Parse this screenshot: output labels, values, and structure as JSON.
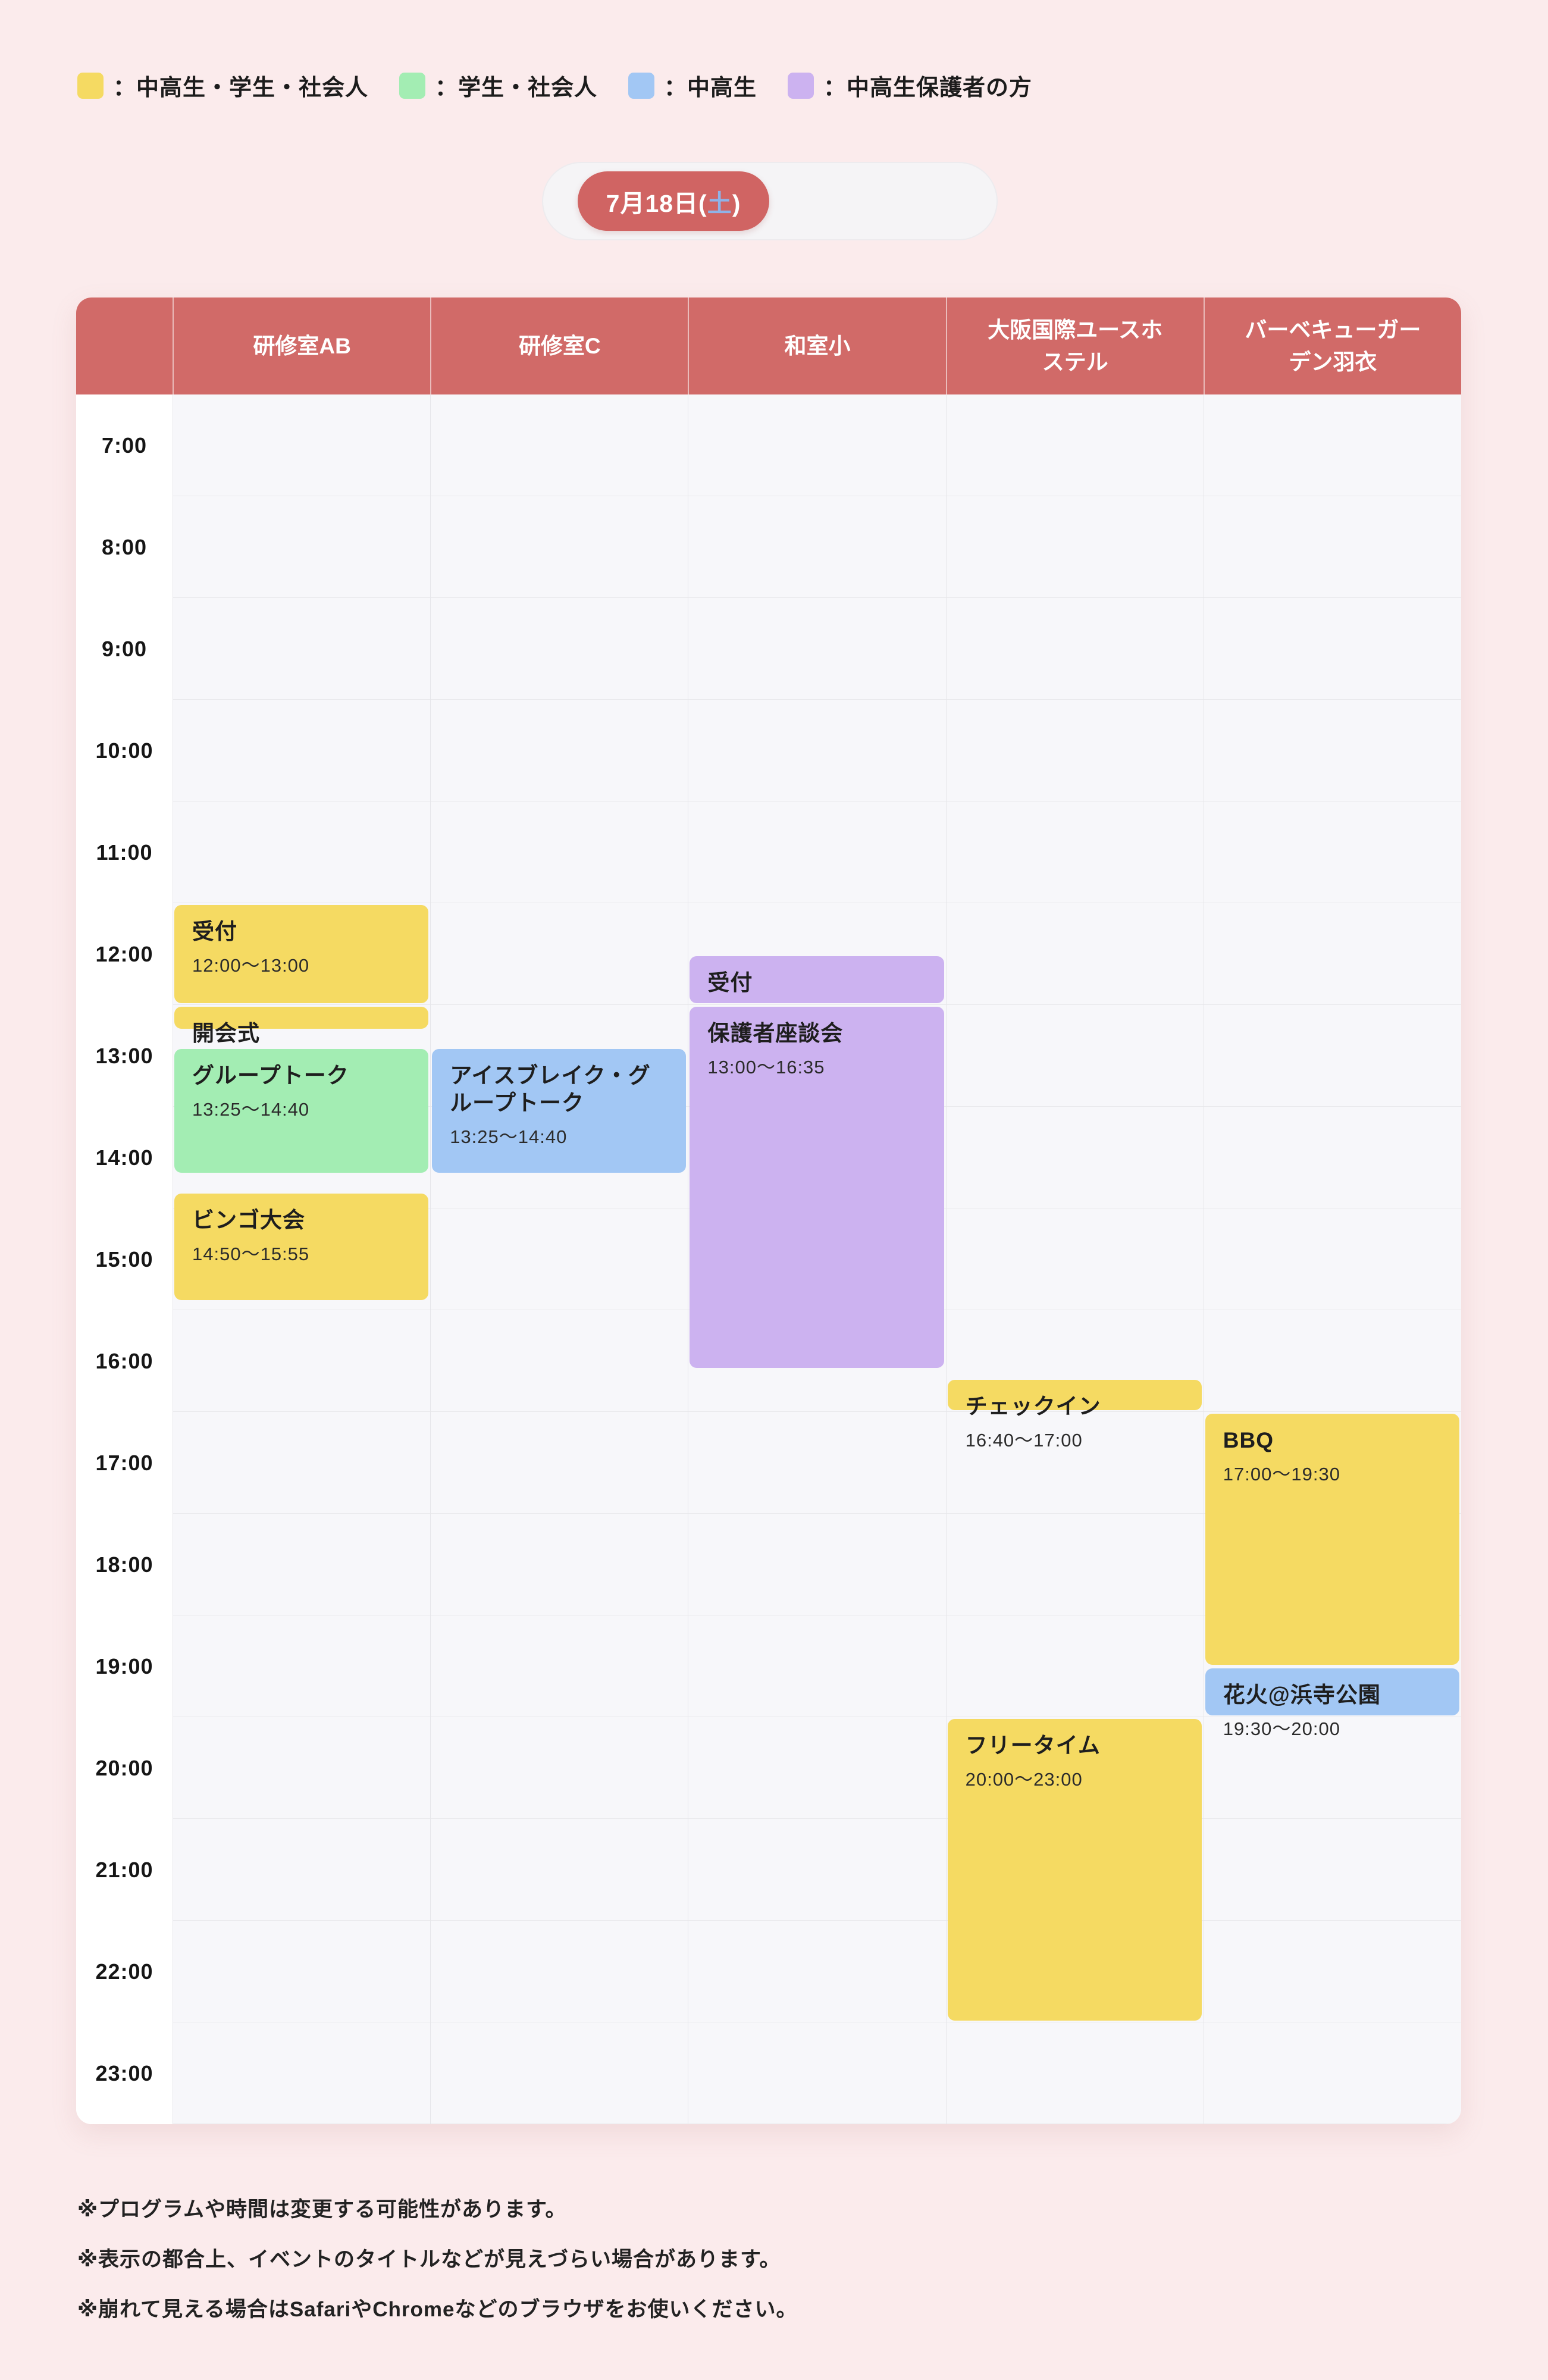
{
  "colors": {
    "yellow": "#f5da62",
    "green": "#a3edb3",
    "blue": "#a2c7f4",
    "purple": "#ccb2f0",
    "header_red": "#d16a68",
    "pill_red": "#d06463",
    "day_char_blue": "#8fb3e8",
    "page_bg": "#fbebec"
  },
  "legend": {
    "items": [
      {
        "icon": "yellow-swatch",
        "color": "yellow",
        "label": "：中高生・学生・社会人"
      },
      {
        "icon": "green-swatch",
        "color": "green",
        "label": "：学生・社会人"
      },
      {
        "icon": "blue-swatch",
        "color": "blue",
        "label": "：中高生"
      },
      {
        "icon": "purple-swatch",
        "color": "purple",
        "label": "：中高生保護者の方"
      }
    ]
  },
  "tabs": {
    "active": {
      "prefix": "7月18日(",
      "day": "土",
      "suffix": ")"
    }
  },
  "schedule": {
    "columns": [
      "研修室AB",
      "研修室C",
      "和室小",
      "大阪国際ユースホステル",
      "バーベキューガーデン羽衣"
    ],
    "times": [
      "7:00",
      "8:00",
      "9:00",
      "10:00",
      "11:00",
      "12:00",
      "13:00",
      "14:00",
      "15:00",
      "16:00",
      "17:00",
      "18:00",
      "19:00",
      "20:00",
      "21:00",
      "22:00",
      "23:00"
    ],
    "events": [
      {
        "column": 0,
        "title": "受付",
        "time": "12:00〜13:00",
        "color": "yellow",
        "start": "12:00",
        "end": "13:00"
      },
      {
        "column": 0,
        "title": "開会式",
        "time": "",
        "color": "yellow",
        "start": "13:00",
        "end": "13:15"
      },
      {
        "column": 0,
        "title": "グループトーク",
        "time": "13:25〜14:40",
        "color": "green",
        "start": "13:25",
        "end": "14:40"
      },
      {
        "column": 0,
        "title": "ビンゴ大会",
        "time": "14:50〜15:55",
        "color": "yellow",
        "start": "14:50",
        "end": "15:55"
      },
      {
        "column": 1,
        "title": "アイスブレイク・グループトーク",
        "time": "13:25〜14:40",
        "color": "blue",
        "start": "13:25",
        "end": "14:40"
      },
      {
        "column": 2,
        "title": "受付",
        "time": "",
        "color": "purple",
        "start": "12:30",
        "end": "13:00"
      },
      {
        "column": 2,
        "title": "保護者座談会",
        "time": "13:00〜16:35",
        "color": "purple",
        "start": "13:00",
        "end": "16:35"
      },
      {
        "column": 3,
        "title": "チェックイン",
        "time": "16:40〜17:00",
        "color": "yellow",
        "start": "16:40",
        "end": "17:00"
      },
      {
        "column": 3,
        "title": "フリータイム",
        "time": "20:00〜23:00",
        "color": "yellow",
        "start": "20:00",
        "end": "23:00"
      },
      {
        "column": 4,
        "title": "BBQ",
        "time": "17:00〜19:30",
        "color": "yellow",
        "start": "17:00",
        "end": "19:30"
      },
      {
        "column": 4,
        "title": "花火@浜寺公園",
        "time": "19:30〜20:00",
        "color": "blue",
        "start": "19:30",
        "end": "20:00"
      }
    ]
  },
  "notes": [
    "※プログラムや時間は変更する可能性があります。",
    "※表示の都合上、イベントのタイトルなどが見えづらい場合があります。",
    "※崩れて見える場合はSafariやChromeなどのブラウザをお使いください。"
  ]
}
